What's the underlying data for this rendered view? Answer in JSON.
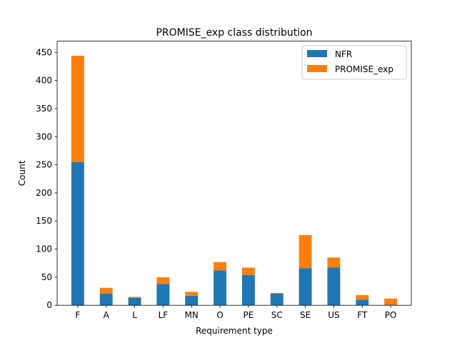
{
  "chart_data": {
    "type": "bar",
    "stacked": true,
    "title": "PROMISE_exp class distribution",
    "xlabel": "Requirement type",
    "ylabel": "Count",
    "ylim": [
      0,
      470
    ],
    "yticks": [
      0,
      50,
      100,
      150,
      200,
      250,
      300,
      350,
      400,
      450
    ],
    "categories": [
      "F",
      "A",
      "L",
      "LF",
      "MN",
      "O",
      "PE",
      "SC",
      "SE",
      "US",
      "FT",
      "PO"
    ],
    "series": [
      {
        "name": "NFR",
        "color": "#1f77b4",
        "values": [
          255,
          21,
          13,
          38,
          17,
          62,
          54,
          21,
          66,
          67,
          10,
          1
        ]
      },
      {
        "name": "PROMISE_exp",
        "color": "#ff7f0e",
        "values": [
          189,
          10,
          2,
          12,
          7,
          15,
          13,
          1,
          59,
          18,
          8,
          11
        ]
      }
    ],
    "grid": false,
    "legend_position": "top-right"
  }
}
